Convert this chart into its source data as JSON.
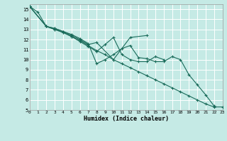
{
  "xlabel": "Humidex (Indice chaleur)",
  "background_color": "#c5eae5",
  "line_color": "#1a6b5a",
  "grid_color": "#ffffff",
  "xlim": [
    0,
    23
  ],
  "ylim": [
    5,
    15.5
  ],
  "yticks": [
    5,
    6,
    7,
    8,
    9,
    10,
    11,
    12,
    13,
    14,
    15
  ],
  "xticks": [
    0,
    1,
    2,
    3,
    4,
    5,
    6,
    7,
    8,
    9,
    10,
    11,
    12,
    13,
    14,
    15,
    16,
    17,
    18,
    19,
    20,
    21,
    22,
    23
  ],
  "series": [
    {
      "x": [
        0,
        1,
        2,
        3,
        4,
        5,
        6,
        7,
        8,
        9,
        10,
        11,
        12,
        13,
        14,
        15,
        16,
        17,
        18,
        19,
        20,
        21,
        22
      ],
      "y": [
        15.3,
        14.7,
        13.3,
        13.1,
        12.8,
        12.5,
        12.1,
        11.6,
        9.6,
        10.0,
        10.5,
        11.1,
        11.4,
        10.2,
        10.1,
        9.8,
        9.8,
        10.3,
        10.0,
        8.5,
        7.5,
        6.5,
        5.4
      ]
    },
    {
      "x": [
        0,
        2,
        3,
        4,
        5,
        6,
        7,
        8,
        10,
        12,
        14
      ],
      "y": [
        15.3,
        13.3,
        13.1,
        12.8,
        12.4,
        12.0,
        11.5,
        11.7,
        10.0,
        12.2,
        12.4
      ]
    },
    {
      "x": [
        0,
        2,
        3,
        4,
        5,
        6,
        7,
        8,
        9,
        10,
        11,
        12,
        13,
        14,
        15,
        16,
        17,
        18,
        19,
        20,
        21,
        22,
        23
      ],
      "y": [
        15.3,
        13.3,
        13.0,
        12.7,
        12.3,
        11.9,
        11.4,
        10.9,
        10.5,
        10.0,
        9.6,
        9.2,
        8.8,
        8.4,
        8.0,
        7.6,
        7.2,
        6.8,
        6.4,
        6.0,
        5.6,
        5.3,
        5.3
      ]
    },
    {
      "x": [
        0,
        2,
        3,
        4,
        5,
        6,
        7,
        8,
        9,
        10,
        11,
        12,
        13,
        14,
        15,
        16
      ],
      "y": [
        15.3,
        13.3,
        13.0,
        12.7,
        12.3,
        11.8,
        11.3,
        10.8,
        11.5,
        12.2,
        10.5,
        10.0,
        9.8,
        9.8,
        10.3,
        10.0
      ]
    }
  ]
}
